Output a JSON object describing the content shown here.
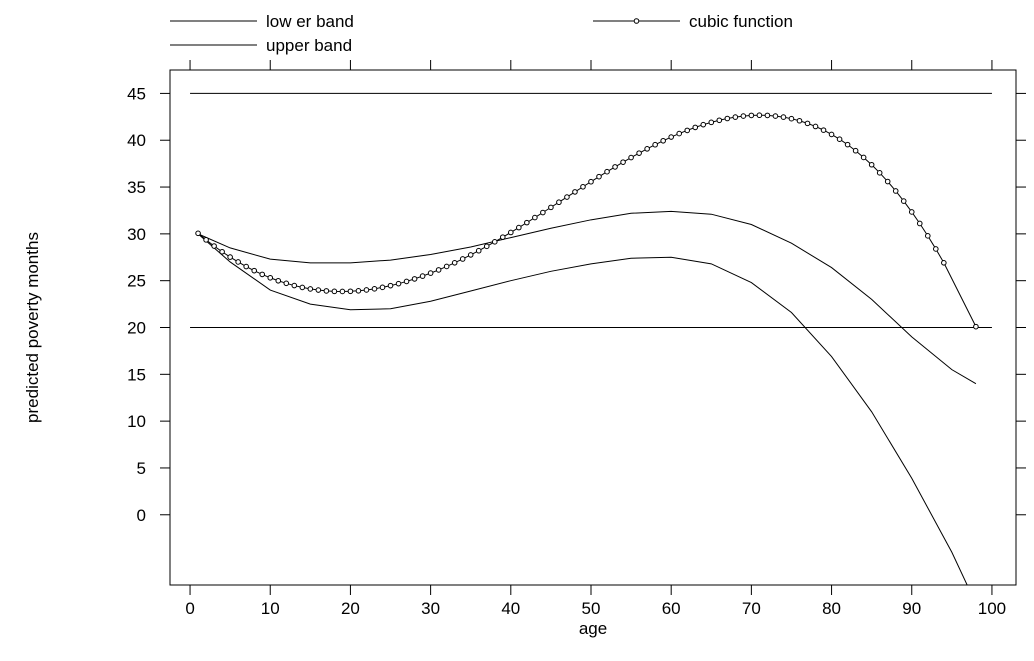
{
  "chart_data": {
    "type": "line",
    "title": "",
    "xlabel": "age",
    "ylabel": "predicted poverty months",
    "xlim": [
      -2.5,
      103
    ],
    "ylim": [
      -7.5,
      47.5
    ],
    "x_ticks": [
      0,
      10,
      20,
      30,
      40,
      50,
      60,
      70,
      80,
      90,
      100
    ],
    "y_ticks": [
      0,
      5,
      10,
      15,
      20,
      25,
      30,
      35,
      40,
      45
    ],
    "grid": false,
    "legend": {
      "placement": "top",
      "entries": [
        {
          "label": "low er band",
          "marker": "none"
        },
        {
          "label": "cubic function",
          "marker": "circle"
        },
        {
          "label": "upper band",
          "marker": "none"
        }
      ]
    },
    "reference_lines": [
      {
        "y": 45,
        "x_range": [
          0,
          100
        ]
      },
      {
        "y": 20,
        "x_range": [
          0,
          100
        ]
      }
    ],
    "series": [
      {
        "name": "low er band",
        "marker": "none",
        "x": [
          1,
          5,
          10,
          15,
          20,
          25,
          30,
          35,
          40,
          45,
          50,
          55,
          60,
          65,
          70,
          75,
          80,
          85,
          90,
          95,
          98
        ],
        "y": [
          30,
          27,
          24,
          22.5,
          21.9,
          22,
          22.8,
          23.9,
          25,
          26,
          26.8,
          27.4,
          27.5,
          26.8,
          24.8,
          21.6,
          16.9,
          11,
          3.9,
          -4,
          -9.5
        ]
      },
      {
        "name": "upper band",
        "marker": "none",
        "x": [
          1,
          5,
          10,
          15,
          20,
          25,
          30,
          35,
          40,
          45,
          50,
          55,
          60,
          65,
          70,
          75,
          80,
          85,
          90,
          95,
          98
        ],
        "y": [
          30,
          28.5,
          27.3,
          26.9,
          26.9,
          27.2,
          27.8,
          28.6,
          29.6,
          30.6,
          31.5,
          32.2,
          32.4,
          32.1,
          31,
          29,
          26.4,
          23,
          19,
          15.5,
          14
        ]
      },
      {
        "name": "cubic function",
        "marker": "circle",
        "x": [
          1,
          2,
          3,
          4,
          5,
          6,
          7,
          8,
          9,
          10,
          11,
          12,
          13,
          14,
          15,
          16,
          17,
          18,
          19,
          20,
          21,
          22,
          23,
          24,
          25,
          26,
          27,
          28,
          29,
          30,
          31,
          32,
          33,
          34,
          35,
          36,
          37,
          38,
          39,
          40,
          41,
          42,
          43,
          44,
          45,
          46,
          47,
          48,
          49,
          50,
          51,
          52,
          53,
          54,
          55,
          56,
          57,
          58,
          59,
          60,
          61,
          62,
          63,
          64,
          65,
          66,
          67,
          68,
          69,
          70,
          71,
          72,
          73,
          74,
          75,
          76,
          77,
          78,
          79,
          80,
          81,
          82,
          83,
          84,
          85,
          86,
          87,
          88,
          89,
          90,
          91,
          92,
          93,
          94,
          98
        ],
        "y": [
          30.06,
          29.36,
          28.7,
          28.09,
          27.52,
          27,
          26.51,
          26.07,
          25.67,
          25.31,
          24.99,
          24.72,
          24.48,
          24.28,
          24.12,
          24,
          23.91,
          23.86,
          23.85,
          23.87,
          23.92,
          24.01,
          24.13,
          24.29,
          24.47,
          24.68,
          24.92,
          25.19,
          25.49,
          25.81,
          26.15,
          26.52,
          26.91,
          27.32,
          27.75,
          28.2,
          28.67,
          29.15,
          29.65,
          30.15,
          30.67,
          31.2,
          31.74,
          32.28,
          32.83,
          33.38,
          33.93,
          34.48,
          35.03,
          35.57,
          36.11,
          36.64,
          37.15,
          37.66,
          38.15,
          38.62,
          39.08,
          39.52,
          39.94,
          40.34,
          40.71,
          41.05,
          41.37,
          41.66,
          41.91,
          42.13,
          42.32,
          42.47,
          42.58,
          42.65,
          42.67,
          42.65,
          42.58,
          42.47,
          42.3,
          42.08,
          41.8,
          41.47,
          41.08,
          40.62,
          40.11,
          39.53,
          38.88,
          38.16,
          37.38,
          36.52,
          35.59,
          34.58,
          33.5,
          32.34,
          31.11,
          29.79,
          28.39,
          26.91,
          20.09
        ]
      }
    ]
  }
}
